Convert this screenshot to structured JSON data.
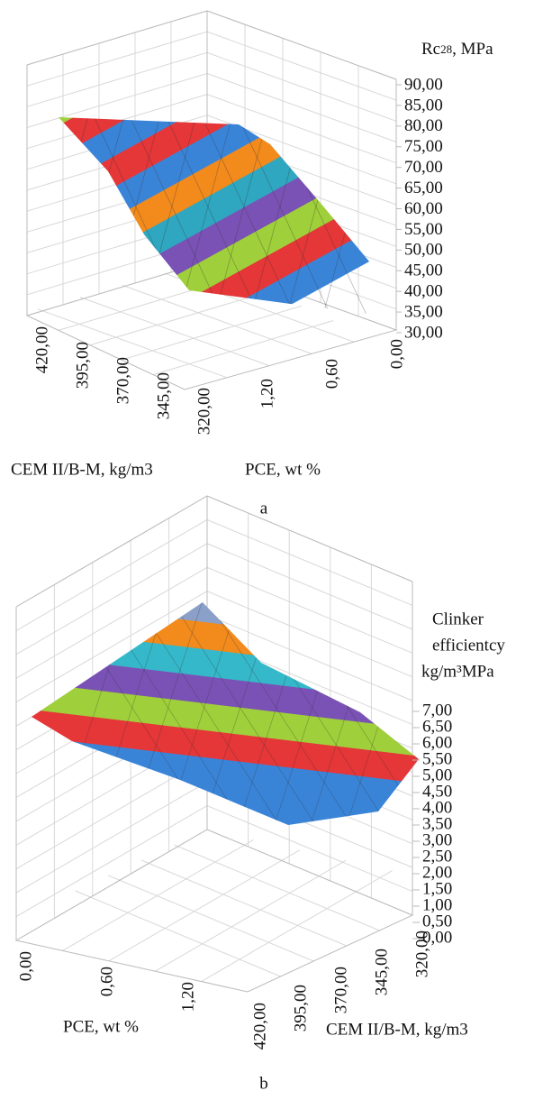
{
  "panels": [
    {
      "label": "a",
      "z_axis": {
        "title_parts": [
          "Rc",
          "28",
          ", MPa"
        ],
        "ticks": [
          "90,00",
          "85,00",
          "80,00",
          "75,00",
          "70,00",
          "65,00",
          "60,00",
          "55,00",
          "50,00",
          "45,00",
          "40,00",
          "35,00",
          "30,00"
        ]
      },
      "x_axis": {
        "title": "CEM II/B-M, kg/m3",
        "ticks": [
          "420,00",
          "395,00",
          "370,00",
          "345,00",
          "320,00"
        ]
      },
      "y_axis": {
        "title": "PCE, wt %",
        "ticks": [
          "1,20",
          "0,60",
          "0,00"
        ]
      }
    },
    {
      "label": "b",
      "z_axis": {
        "title_lines": [
          "Clinker",
          "efficientcy",
          "kg/m³MPa"
        ],
        "ticks": [
          "7,00",
          "6,50",
          "6,00",
          "5,50",
          "5,00",
          "4,50",
          "4,00",
          "3,50",
          "3,00",
          "2,50",
          "2,00",
          "1,50",
          "1,00",
          "0,50",
          "0,00"
        ]
      },
      "x_axis": {
        "title": "PCE, wt %",
        "ticks": [
          "0,00",
          "0,60",
          "1,20"
        ]
      },
      "y_axis": {
        "title": "CEM II/B-M, kg/m3",
        "ticks": [
          "420,00",
          "395,00",
          "370,00",
          "345,00",
          "320,00"
        ]
      }
    }
  ]
}
